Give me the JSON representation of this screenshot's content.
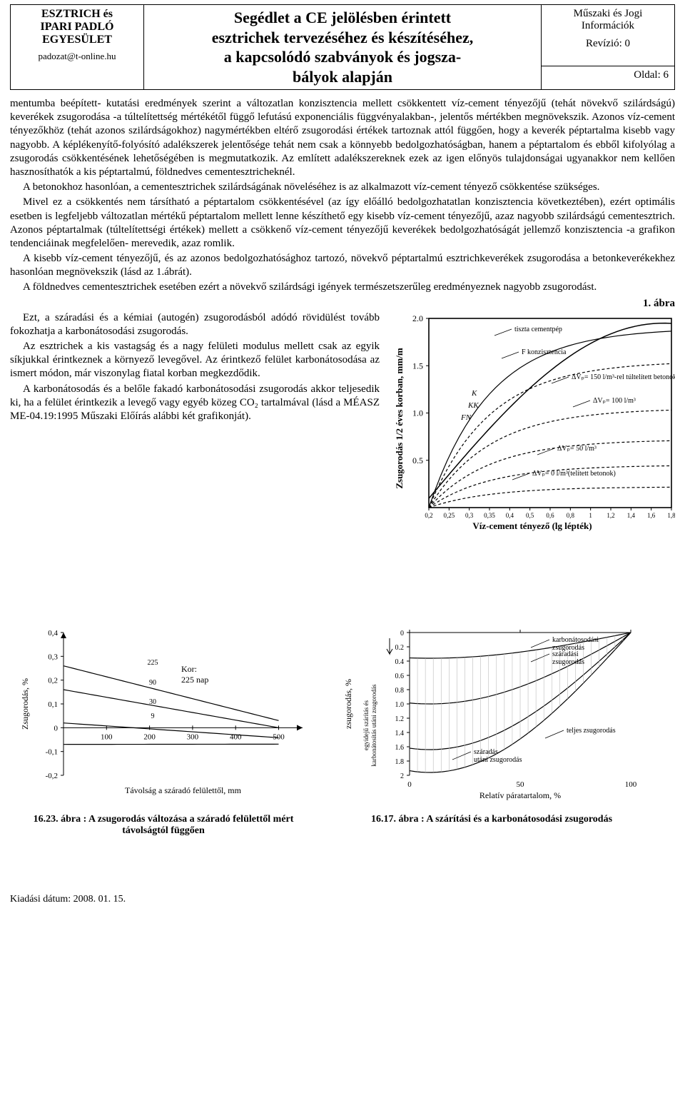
{
  "header": {
    "org_name_l1": "ESZTRICH és",
    "org_name_l2": "IPARI PADLÓ",
    "org_name_l3": "EGYESÜLET",
    "org_email": "padozat@t-online.hu",
    "title_l1": "Segédlet a CE jelölésben érintett",
    "title_l2": "esztrichek tervezéséhez és készítéséhez,",
    "title_l3": "a kapcsolódó szabványok és jogsza-",
    "title_l4": "bályok alapján",
    "info_l1": "Műszaki és Jogi",
    "info_l2": "Információk",
    "revision": "Revízió: 0",
    "page": "Oldal: 6"
  },
  "paragraphs": {
    "p1": "mentumba beépített- kutatási eredmények szerint a változatlan konzisztencia mellett csökkentett víz-cement tényezőjű (tehát növekvő szilárdságú) keverékek zsugorodása -a túltelítettség mértékétől függő lefutású exponenciális függvényalakban-, jelentős mértékben megnövekszik. Azonos víz-cement tényezőkhöz (tehát azonos szilárdságokhoz) nagymértékben eltérő zsugorodási értékek tartoznak attól függően, hogy a keverék péptartalma kisebb vagy nagyobb. A képlékenyítő-folyósító adalékszerek jelentősége tehát nem csak a könnyebb bedolgozhatóságban, hanem a péptartalom és ebből kifolyólag a zsugorodás csökkentésének lehetőségében is megmutatkozik. Az említett adalékszereknek ezek az igen előnyös tulajdonságai ugyanakkor nem kellően hasznosíthatók a kis péptartalmú, földnedves cementesztricheknél.",
    "p2": "A betonokhoz hasonlóan, a cementesztrichek szilárdságának növeléséhez is az alkalmazott víz-cement tényező csökkentése szükséges.",
    "p3": "Mivel ez a csökkentés nem társítható a péptartalom csökkentésével (az így előálló bedolgozhatatlan konzisztencia következtében), ezért optimális esetben is legfeljebb változatlan mértékű péptartalom mellett lenne készíthető egy kisebb víz-cement tényezőjű, azaz nagyobb szilárdságú cementesztrich. Azonos péptartalmak (túltelítettségi értékek) mellett a csökkenő víz-cement tényezőjű keverékek bedolgozhatóságát jellemző konzisztencia -a grafikon tendenciáinak megfelelően- merevedik, azaz romlik.",
    "p4": "A kisebb víz-cement tényezőjű, és az azonos bedolgozhatósághoz tartozó, növekvő péptartalmú esztrichkeverékek zsugorodása a betonkeverékekhez hasonlóan megnövekszik (lásd az 1.ábrát).",
    "p5": "A földnedves cementesztrichek esetében ezért a növekvő szilárdsági igények természetszerűleg eredményeznek nagyobb zsugorodást.",
    "p6": "Ezt, a száradási és a kémiai (autogén) zsugorodásból adódó rövidülést tovább fokozhatja a karbonátosodási zsugorodás.",
    "p7": "Az esztrichek a kis vastagság és a nagy felületi modulus mellett csak az egyik síkjukkal érintkeznek a környező levegővel. Az érintkező felület karbonátosodása az ismert módon, már viszonylag fiatal korban megkezdődik.",
    "p8": "A karbonátosodás és a belőle fakadó karbonátosodási zsugorodás akkor teljesedik ki, ha a felület érintkezik a levegő vagy egyéb közeg CO₂ tartalmával (lásd a MÉASZ ME-04.19:1995 Műszaki Előírás alábbi két grafikonját)."
  },
  "fig1": {
    "label": "1. ábra",
    "chart": {
      "type": "line",
      "background": "#ffffff",
      "border_color": "#000000",
      "ylabel": "Zsugorodás 1/2 éves korban, mm/m",
      "xlabel": "Víz-cement tényező (lg lépték)",
      "ylim": [
        0,
        2.0
      ],
      "yticks": [
        0.5,
        1.0,
        1.5,
        2.0
      ],
      "xticks": [
        "0,2",
        "0,25",
        "0,3",
        "0,35",
        "0,4",
        "0,5",
        "0,6",
        "0,8",
        "1",
        "1,2",
        "1,4",
        "1,6",
        "1,8"
      ],
      "annotations": [
        "tiszta cementpép",
        "F konzisztencia",
        "ΔVₚ= 150 l/m³-rel túltelített betonok",
        "ΔVₚ= 100 l/m³",
        "ΔVₚ= 50 l/m³",
        "ΔVₚ= 0 l/m³(telített betonok)"
      ],
      "curve_labels": [
        "K",
        "KK",
        "FN"
      ],
      "line_color": "#000000",
      "dash": "4,3"
    }
  },
  "fig2": {
    "caption": "16.23. ábra : A zsugorodás változása a száradó felülettől mért távolságtól függően",
    "chart": {
      "type": "line",
      "xlabel": "Távolság a száradó felülettől, mm",
      "ylabel": "Zsugorodás, %",
      "age_label": "Kor:",
      "age_val": "225 nap",
      "series_labels": [
        "225",
        "90",
        "30",
        "9"
      ],
      "xticks": [
        "100",
        "200",
        "300",
        "400",
        "500"
      ],
      "yticks": [
        "0,4",
        "0,3",
        "0,2",
        "0,1",
        "0",
        "-0,1",
        "-0,2"
      ],
      "line_color": "#000000"
    }
  },
  "fig3": {
    "caption": "16.17. ábra : A szárítási és a karbonátosodási zsugorodás",
    "chart": {
      "type": "line",
      "xlabel": "Relatív páratartalom, %",
      "ylabel": "zsugorodás, %",
      "xticks": [
        "0",
        "50",
        "100"
      ],
      "yticks": [
        "0",
        "0.2",
        "0.4",
        "0.6",
        "0.8",
        "1.0",
        "1.2",
        "1.4",
        "1.6",
        "1.8",
        "2"
      ],
      "side_label_1": "egyidejű szárítás és karbonátosítás utáni zsugorodás",
      "ann": [
        "karbonátosodási zsugorodás",
        "száradási zsugorodás",
        "teljes zsugorodás",
        "száradás utáni zsugorodás"
      ],
      "line_color": "#000000"
    }
  },
  "footer": "Kiadási dátum: 2008. 01. 15."
}
